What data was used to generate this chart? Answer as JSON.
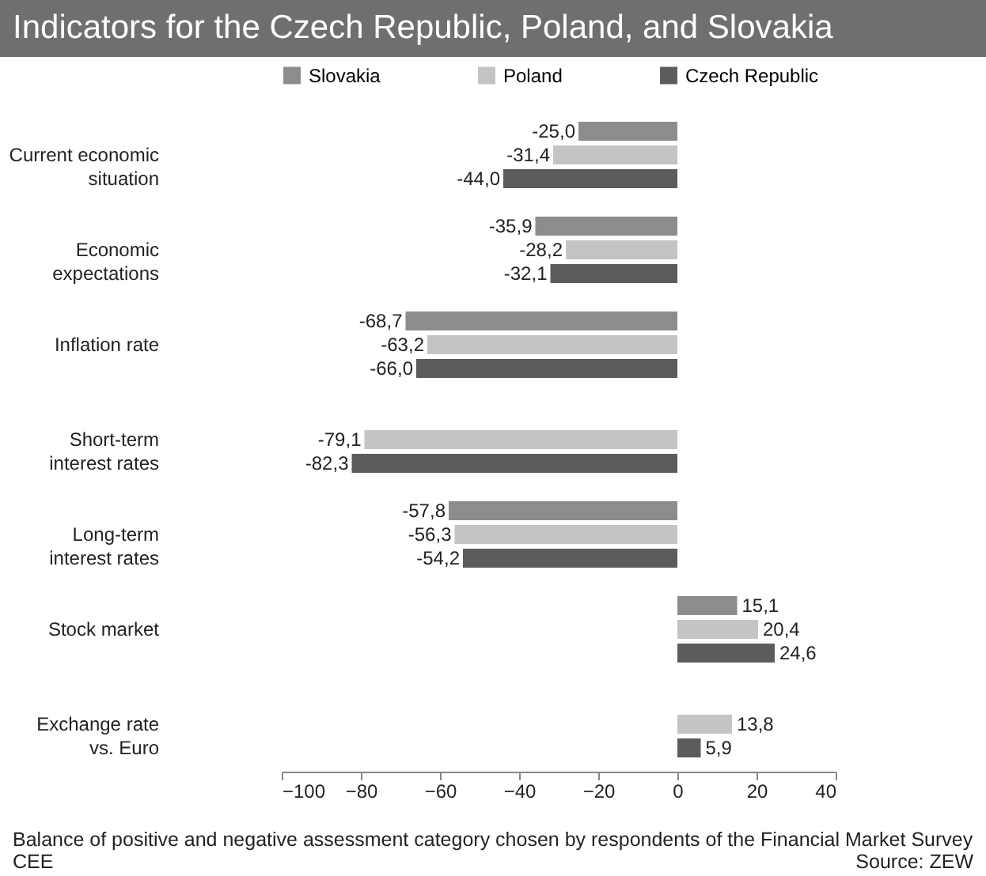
{
  "chart_data": {
    "type": "bar",
    "orientation": "horizontal",
    "title": "Indicators for the Czech Republic, Poland, and Slovakia",
    "categories": [
      "Current economic situation",
      "Economic expectations",
      "Inflation rate",
      "Short-term interest rates",
      "Long-term interest rates",
      "Stock market",
      "Exchange rate vs. Euro"
    ],
    "series": [
      {
        "name": "Slovakia",
        "color": "#8c8c8c",
        "values": [
          -25.0,
          -35.9,
          -68.7,
          null,
          -57.8,
          15.1,
          null
        ],
        "value_labels": [
          "-25,0",
          "-35,9",
          "-68,7",
          null,
          "-57,8",
          "15,1",
          null
        ]
      },
      {
        "name": "Poland",
        "color": "#c4c4c4",
        "values": [
          -31.4,
          -28.2,
          -63.2,
          -79.1,
          -56.3,
          20.4,
          13.8
        ],
        "value_labels": [
          "-31,4",
          "-28,2",
          "-63,2",
          "-79,1",
          "-56,3",
          "20,4",
          "13,8"
        ]
      },
      {
        "name": "Czech Republic",
        "color": "#5c5c5c",
        "values": [
          -44.0,
          -32.1,
          -66.0,
          -82.3,
          -54.2,
          24.6,
          5.9
        ],
        "value_labels": [
          "-44,0",
          "-32,1",
          "-66,0",
          "-82,3",
          "-54,2",
          "24,6",
          "5,9"
        ]
      }
    ],
    "xlim": [
      -100,
      40
    ],
    "xticks": [
      -100,
      -80,
      -60,
      -40,
      -20,
      0,
      20,
      40
    ],
    "legend": "top",
    "grid": false,
    "annotations": [
      "Balance of positive and negative assessment category chosen by respondents of the Financial Market Survey CEE",
      "Source: ZEW"
    ]
  }
}
